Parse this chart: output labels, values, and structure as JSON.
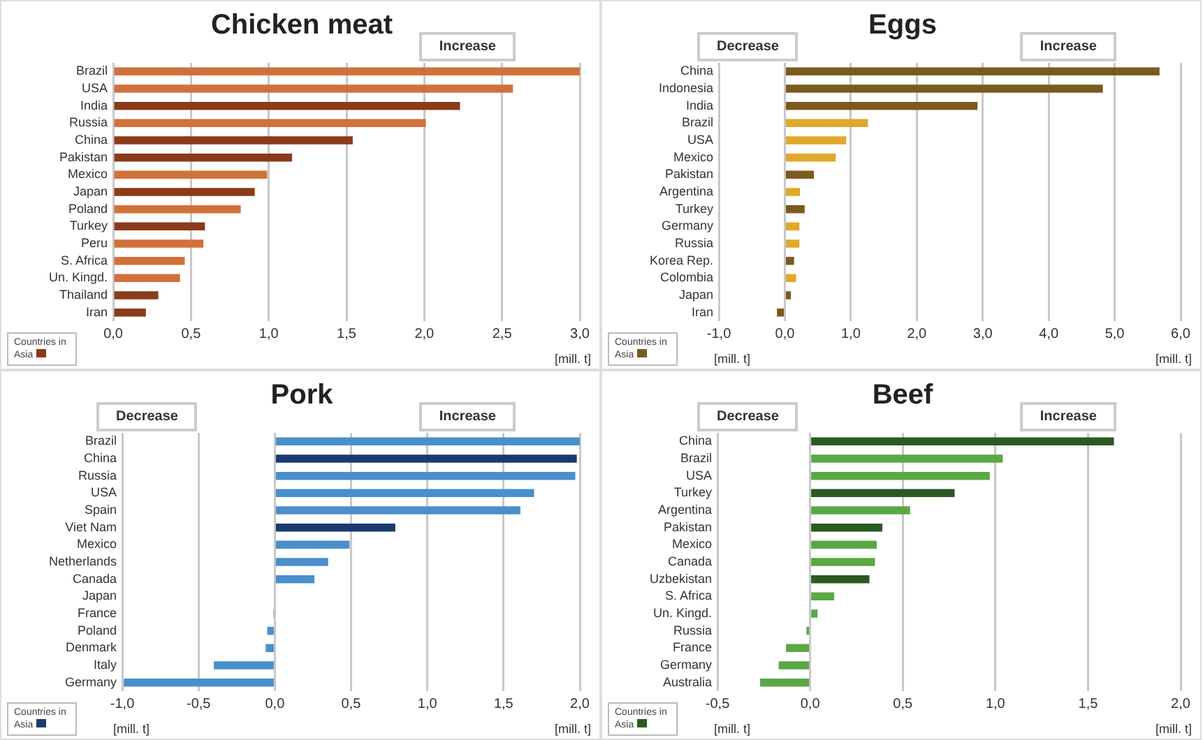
{
  "chart_data": [
    {
      "type": "bar",
      "title": "Chicken meat",
      "orientation": "horizontal",
      "stacked": true,
      "grid": "x",
      "legend": "bottom left",
      "xlabel": "[mill. t]",
      "annotations": [
        "Increase"
      ],
      "categories": [
        "Brazil",
        "USA",
        "India",
        "Russia",
        "China",
        "Pakistan",
        "Mexico",
        "Japan",
        "Poland",
        "Turkey",
        "Peru",
        "S. Africa",
        "Un. Kingd.",
        "Thailand",
        "Iran"
      ],
      "xlim": [
        0,
        3
      ],
      "xticks": [
        {
          "value": 0,
          "label": "0,0"
        },
        {
          "value": 0.5,
          "label": "0,5"
        },
        {
          "value": 1,
          "label": "1,0"
        },
        {
          "value": 1.5,
          "label": "1,5"
        },
        {
          "value": 2,
          "label": "2,0"
        },
        {
          "value": 2.5,
          "label": "2,5"
        },
        {
          "value": 3,
          "label": "3,0"
        }
      ],
      "series": [
        {
          "color": "#d2703a",
          "values": [
            3.0,
            2.57,
            null,
            2.01,
            null,
            null,
            0.99,
            null,
            0.82,
            null,
            0.58,
            0.46,
            0.43,
            null,
            null
          ]
        },
        {
          "name": "Countries in Asia",
          "color": "#8b3a1a",
          "values": [
            null,
            null,
            2.23,
            null,
            1.54,
            1.15,
            null,
            0.91,
            null,
            0.59,
            null,
            null,
            null,
            0.29,
            0.21
          ]
        }
      ]
    },
    {
      "type": "bar",
      "title": "Eggs",
      "orientation": "horizontal",
      "stacked": true,
      "grid": "x",
      "legend": "bottom left",
      "xlabel": "[mill. t]",
      "annotations": [
        "Decrease",
        "Increase"
      ],
      "categories": [
        "China",
        "Indonesia",
        "India",
        "Brazil",
        "USA",
        "Mexico",
        "Pakistan",
        "Argentina",
        "Turkey",
        "Germany",
        "Russia",
        "Korea Rep.",
        "Colombia",
        "Japan",
        "Iran"
      ],
      "xlim": [
        -1,
        6
      ],
      "xticks": [
        {
          "value": -1,
          "label": "-1,0"
        },
        {
          "value": 0,
          "label": "0,0"
        },
        {
          "value": 1,
          "label": "1,0"
        },
        {
          "value": 2,
          "label": "2,0"
        },
        {
          "value": 3,
          "label": "3,0"
        },
        {
          "value": 4,
          "label": "4,0"
        },
        {
          "value": 5,
          "label": "5,0"
        },
        {
          "value": 6,
          "label": "6,0"
        }
      ],
      "series": [
        {
          "color": "#e0a82a",
          "values": [
            null,
            null,
            null,
            1.26,
            0.93,
            0.77,
            null,
            0.23,
            null,
            0.22,
            0.22,
            null,
            0.17,
            null,
            null
          ]
        },
        {
          "name": "Countries in Asia",
          "color": "#7a5a1e",
          "values": [
            5.68,
            4.82,
            2.92,
            null,
            null,
            null,
            0.44,
            null,
            0.3,
            null,
            null,
            0.14,
            null,
            0.09,
            -0.12
          ]
        }
      ]
    },
    {
      "type": "bar",
      "title": "Pork",
      "orientation": "horizontal",
      "stacked": true,
      "grid": "x",
      "legend": "bottom left",
      "xlabel": "[mill. t]",
      "annotations": [
        "Decrease",
        "Increase"
      ],
      "categories": [
        "Brazil",
        "China",
        "Russia",
        "USA",
        "Spain",
        "Viet Nam",
        "Mexico",
        "Netherlands",
        "Canada",
        "Japan",
        "France",
        "Poland",
        "Denmark",
        "Italy",
        "Germany"
      ],
      "xlim": [
        -1,
        2
      ],
      "xticks": [
        {
          "value": -1,
          "label": "-1,0"
        },
        {
          "value": -0.5,
          "label": "-0,5"
        },
        {
          "value": 0,
          "label": "0,0"
        },
        {
          "value": 0.5,
          "label": "0,5"
        },
        {
          "value": 1,
          "label": "1,0"
        },
        {
          "value": 1.5,
          "label": "1,5"
        },
        {
          "value": 2,
          "label": "2,0"
        }
      ],
      "series": [
        {
          "color": "#4a8fcc",
          "values": [
            2.0,
            null,
            1.97,
            1.7,
            1.61,
            null,
            0.49,
            0.35,
            0.26,
            null,
            -0.01,
            -0.05,
            -0.06,
            -0.4,
            -0.99
          ]
        },
        {
          "name": "Countries in Asia",
          "color": "#1a3a6e",
          "values": [
            null,
            1.98,
            null,
            null,
            null,
            0.79,
            null,
            null,
            null,
            0,
            null,
            null,
            null,
            null,
            null
          ]
        }
      ]
    },
    {
      "type": "bar",
      "title": "Beef",
      "orientation": "horizontal",
      "stacked": true,
      "grid": "x",
      "legend": "bottom left",
      "xlabel": "[mill. t]",
      "annotations": [
        "Decrease",
        "Increase"
      ],
      "categories": [
        "China",
        "Brazil",
        "USA",
        "Turkey",
        "Argentina",
        "Pakistan",
        "Mexico",
        "Canada",
        "Uzbekistan",
        "S. Africa",
        "Un. Kingd.",
        "Russia",
        "France",
        "Germany",
        "Australia"
      ],
      "xlim": [
        -0.5,
        2
      ],
      "xticks": [
        {
          "value": -0.5,
          "label": "-0,5"
        },
        {
          "value": 0,
          "label": "0,0"
        },
        {
          "value": 0.5,
          "label": "0,5"
        },
        {
          "value": 1,
          "label": "1,0"
        },
        {
          "value": 1.5,
          "label": "1,5"
        },
        {
          "value": 2,
          "label": "2,0"
        }
      ],
      "series": [
        {
          "color": "#5aa845",
          "values": [
            null,
            1.04,
            0.97,
            null,
            0.54,
            null,
            0.36,
            0.35,
            null,
            0.13,
            0.04,
            -0.02,
            -0.13,
            -0.17,
            -0.27
          ]
        },
        {
          "name": "Countries in Asia",
          "color": "#2a5a22",
          "values": [
            1.64,
            null,
            null,
            0.78,
            null,
            0.39,
            null,
            null,
            0.32,
            null,
            null,
            null,
            null,
            null,
            null
          ]
        }
      ]
    }
  ]
}
